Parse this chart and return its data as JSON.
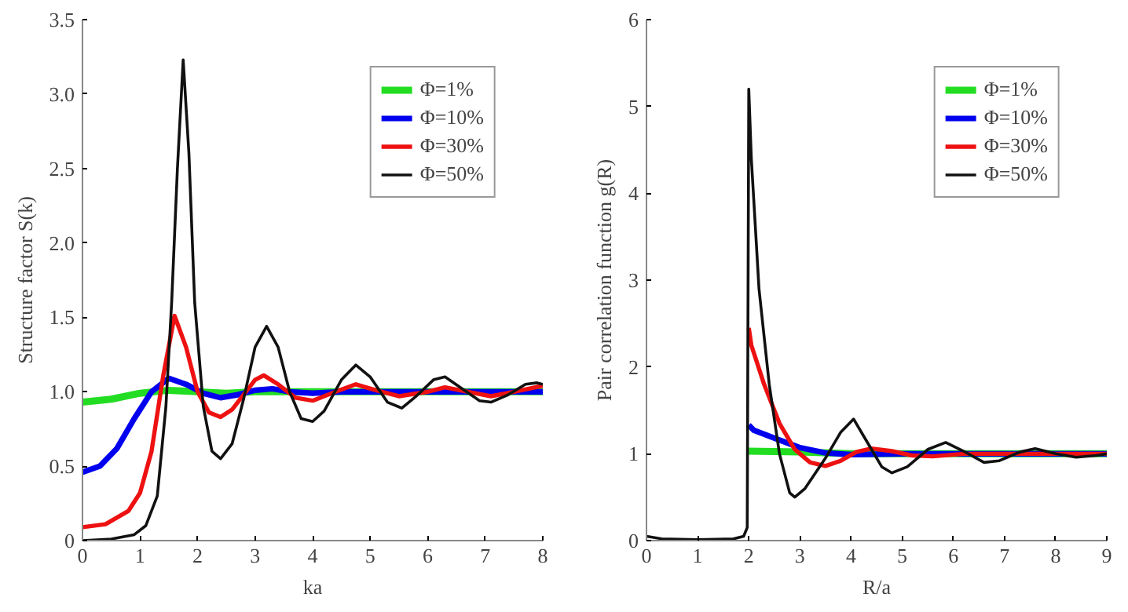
{
  "chart_data": [
    {
      "type": "line",
      "xlabel": "ka",
      "ylabel": "Structure factor S(k)",
      "xlim": [
        0,
        8
      ],
      "ylim": [
        0,
        3.5
      ],
      "xticks": [
        0,
        1,
        2,
        3,
        4,
        5,
        6,
        7,
        8
      ],
      "yticks": [
        0,
        0.5,
        {
          "value": 1,
          "label": "1.0"
        },
        1.5,
        {
          "value": 2,
          "label": "2.0"
        },
        2.5,
        {
          "value": 3,
          "label": "3.0"
        },
        3.5
      ],
      "grid": false,
      "legend": "top right",
      "series": [
        {
          "name": "Φ=1%",
          "color": "#22dd22",
          "x": [
            0,
            0.5,
            1,
            1.5,
            2,
            2.5,
            3,
            4,
            5,
            8
          ],
          "values": [
            0.93,
            0.95,
            0.99,
            1.01,
            1.0,
            0.99,
            1.0,
            1.0,
            1.0,
            1.0
          ]
        },
        {
          "name": "Φ=10%",
          "color": "#0000ee",
          "x": [
            0,
            0.3,
            0.6,
            0.9,
            1.2,
            1.5,
            1.8,
            2.1,
            2.4,
            2.7,
            3.0,
            3.3,
            3.6,
            4,
            4.5,
            5,
            8
          ],
          "values": [
            0.46,
            0.5,
            0.62,
            0.82,
            1.0,
            1.09,
            1.05,
            0.99,
            0.96,
            0.98,
            1.01,
            1.02,
            1.0,
            0.99,
            1.0,
            1.0,
            1.0
          ]
        },
        {
          "name": "Φ=30%",
          "color": "#ee1111",
          "x": [
            0,
            0.4,
            0.8,
            1.0,
            1.2,
            1.4,
            1.6,
            1.8,
            2.0,
            2.2,
            2.4,
            2.6,
            2.8,
            3.0,
            3.15,
            3.4,
            3.7,
            4.0,
            4.4,
            4.75,
            5.1,
            5.5,
            6.0,
            6.3,
            6.7,
            7.1,
            7.5,
            8.0
          ],
          "values": [
            0.09,
            0.11,
            0.2,
            0.32,
            0.6,
            1.1,
            1.51,
            1.3,
            1.0,
            0.86,
            0.83,
            0.88,
            0.98,
            1.08,
            1.11,
            1.05,
            0.96,
            0.94,
            1.0,
            1.05,
            1.01,
            0.97,
            1.0,
            1.03,
            1.0,
            0.97,
            1.0,
            1.04
          ]
        },
        {
          "name": "Φ=50%",
          "color": "#111111",
          "x": [
            0,
            0.5,
            0.9,
            1.1,
            1.3,
            1.45,
            1.55,
            1.65,
            1.75,
            1.85,
            1.95,
            2.1,
            2.25,
            2.4,
            2.6,
            2.8,
            3.0,
            3.2,
            3.4,
            3.6,
            3.8,
            4.0,
            4.2,
            4.5,
            4.75,
            5.0,
            5.3,
            5.55,
            5.8,
            6.1,
            6.3,
            6.6,
            6.9,
            7.1,
            7.4,
            7.7,
            7.9,
            8.0
          ],
          "values": [
            0.0,
            0.01,
            0.04,
            0.1,
            0.3,
            0.9,
            1.6,
            2.5,
            3.23,
            2.6,
            1.6,
            0.9,
            0.6,
            0.55,
            0.65,
            0.95,
            1.3,
            1.44,
            1.3,
            1.0,
            0.82,
            0.8,
            0.87,
            1.08,
            1.18,
            1.1,
            0.93,
            0.89,
            0.97,
            1.08,
            1.1,
            1.02,
            0.94,
            0.93,
            0.98,
            1.05,
            1.06,
            1.05
          ]
        }
      ]
    },
    {
      "type": "line",
      "xlabel": "R/a",
      "ylabel": "Pair correlation function g(R)",
      "xlim": [
        0,
        9
      ],
      "ylim": [
        0,
        6
      ],
      "xticks": [
        0,
        1,
        2,
        3,
        4,
        5,
        6,
        7,
        8,
        9
      ],
      "yticks": [
        0,
        1,
        2,
        3,
        4,
        5,
        6
      ],
      "grid": false,
      "legend": "top right",
      "series": [
        {
          "name": "Φ=1%",
          "color": "#22dd22",
          "x": [
            2.0,
            3.0,
            4.0,
            9.0
          ],
          "values": [
            1.03,
            1.02,
            1.0,
            1.0
          ]
        },
        {
          "name": "Φ=10%",
          "color": "#0000ee",
          "x": [
            2.0,
            2.1,
            2.5,
            3.0,
            3.5,
            4.0,
            5.0,
            9.0
          ],
          "values": [
            1.33,
            1.27,
            1.18,
            1.07,
            1.01,
            0.99,
            1.0,
            1.0
          ]
        },
        {
          "name": "Φ=30%",
          "color": "#ee1111",
          "x": [
            2.0,
            2.05,
            2.3,
            2.6,
            2.9,
            3.2,
            3.5,
            3.8,
            4.1,
            4.4,
            4.8,
            5.2,
            5.6,
            6.2,
            7.0,
            9.0
          ],
          "values": [
            2.45,
            2.25,
            1.8,
            1.35,
            1.05,
            0.9,
            0.86,
            0.92,
            1.02,
            1.06,
            1.03,
            0.98,
            0.97,
            1.0,
            1.0,
            1.0
          ]
        },
        {
          "name": "Φ=50%",
          "color": "#111111",
          "x": [
            0,
            0.3,
            1.0,
            1.7,
            1.9,
            1.97,
            2.0,
            2.05,
            2.2,
            2.4,
            2.6,
            2.8,
            2.9,
            3.1,
            3.5,
            3.8,
            4.05,
            4.3,
            4.6,
            4.8,
            5.1,
            5.5,
            5.85,
            6.2,
            6.6,
            6.9,
            7.3,
            7.6,
            8.0,
            8.4,
            8.8,
            9.0
          ],
          "values": [
            0.05,
            0.02,
            0.01,
            0.02,
            0.05,
            0.15,
            5.2,
            4.4,
            2.9,
            1.8,
            1.0,
            0.55,
            0.5,
            0.6,
            0.95,
            1.25,
            1.4,
            1.15,
            0.85,
            0.78,
            0.85,
            1.05,
            1.13,
            1.03,
            0.9,
            0.92,
            1.02,
            1.06,
            1.0,
            0.96,
            0.98,
            1.0
          ]
        }
      ]
    }
  ]
}
